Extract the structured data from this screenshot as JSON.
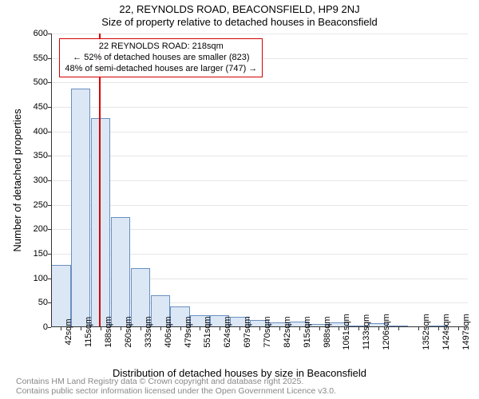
{
  "title": "22, REYNOLDS ROAD, BEACONSFIELD, HP9 2NJ",
  "subtitle": "Size of property relative to detached houses in Beaconsfield",
  "chart": {
    "type": "histogram",
    "ylabel": "Number of detached properties",
    "xlabel": "Distribution of detached houses by size in Beaconsfield",
    "ylim": [
      0,
      600
    ],
    "ytick_step": 50,
    "grid_color": "#e6e6e6",
    "axis_color": "#333333",
    "bar_fill": "#dbe7f5",
    "bar_stroke": "#6a8fbf",
    "background_color": "#ffffff",
    "bar_width_ratio": 0.98,
    "categories": [
      "42sqm",
      "115sqm",
      "188sqm",
      "260sqm",
      "333sqm",
      "406sqm",
      "479sqm",
      "551sqm",
      "624sqm",
      "697sqm",
      "770sqm",
      "842sqm",
      "915sqm",
      "988sqm",
      "1061sqm",
      "1133sqm",
      "1206sqm",
      "",
      "1352sqm",
      "1424sqm",
      "1497sqm"
    ],
    "values": [
      128,
      488,
      428,
      225,
      120,
      65,
      43,
      25,
      24,
      22,
      15,
      10,
      12,
      6,
      10,
      4,
      8,
      3,
      0,
      3,
      0
    ],
    "marker": {
      "value_label": "22 REYNOLDS ROAD: 218sqm",
      "position_index": 2.43,
      "color": "#d60000",
      "annotation_lines": [
        "← 52% of detached houses are smaller (823)",
        "48% of semi-detached houses are larger (747) →"
      ],
      "box_border": "#d60000"
    }
  },
  "footer": {
    "line1": "Contains HM Land Registry data © Crown copyright and database right 2025.",
    "line2": "Contains public sector information licensed under the Open Government Licence v3.0."
  },
  "label_fontsize": 13,
  "tick_fontsize": 11
}
